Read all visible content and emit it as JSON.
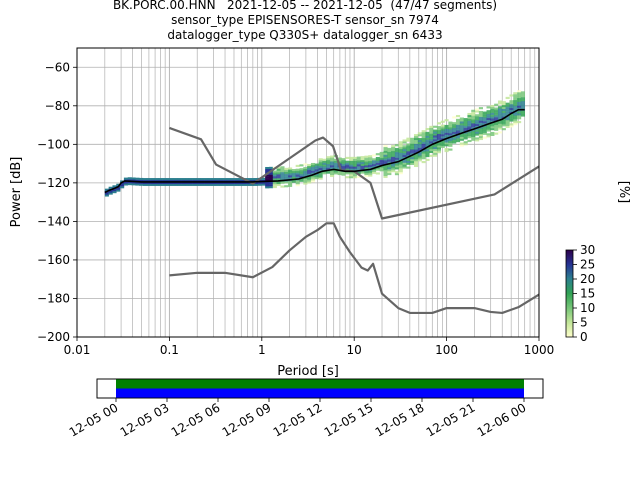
{
  "titles": {
    "line1": "BK.PORC.00.HNN   2021-12-05 -- 2021-12-05  (47/47 segments)",
    "line2": "sensor_type EPISENSORES-T sensor_sn 7974",
    "line3": "datalogger_type Q330S+ datalogger_sn 6433"
  },
  "chart_data": [
    {
      "type": "line",
      "title": "",
      "xlabel": "Period [s]",
      "ylabel": "Power [dB]",
      "xscale": "log",
      "xlim": [
        0.01,
        1000
      ],
      "ylim": [
        -200,
        -50
      ],
      "x_ticks": [
        "0.01",
        "0.1",
        "1",
        "10",
        "100",
        "1000"
      ],
      "y_ticks": [
        "−200",
        "−180",
        "−160",
        "−140",
        "−120",
        "−100",
        "−80",
        "−60"
      ],
      "grid": true,
      "colorbar": {
        "label": "[%]",
        "ticks": [
          "0",
          "5",
          "10",
          "15",
          "20",
          "25",
          "30"
        ],
        "range": [
          0,
          30
        ],
        "colors": [
          "#ffffcc",
          "#c2e699",
          "#78c679",
          "#31a354",
          "#2c7f8f",
          "#253494",
          "#2d004b"
        ]
      },
      "series": [
        {
          "role": "mode (black)",
          "color": "#000000",
          "x": [
            0.02,
            0.022,
            0.025,
            0.028,
            0.03,
            0.033,
            0.05,
            0.1,
            0.3,
            0.8,
            1.5,
            2.5,
            3.5,
            4.5,
            6,
            8,
            10,
            15,
            20,
            30,
            50,
            70,
            100,
            150,
            200,
            300,
            400,
            500,
            600,
            700
          ],
          "y": [
            -125,
            -124,
            -123,
            -122,
            -120,
            -119,
            -119.5,
            -119.5,
            -119.5,
            -119.5,
            -119,
            -118,
            -116,
            -114,
            -113,
            -114,
            -114,
            -113,
            -111,
            -109,
            -104,
            -100,
            -97,
            -94,
            -92,
            -89,
            -87,
            -84,
            -82,
            -82
          ]
        },
        {
          "role": "model curve (gray)",
          "color": "#666666",
          "x": [
            0.1,
            0.22,
            0.32,
            0.8,
            3.8,
            4.6,
            5.9,
            7.2,
            10,
            15,
            20,
            330,
            1000
          ],
          "y": [
            -91.5,
            -97.4,
            -110.5,
            -120.4,
            -98,
            -96.5,
            -101,
            -113.5,
            -114,
            -120,
            -138.5,
            -126,
            -111.5
          ]
        },
        {
          "role": "model curve (gray)",
          "color": "#666666",
          "x": [
            0.1,
            0.2,
            0.4,
            0.8,
            1.3,
            2,
            3,
            4,
            5,
            6,
            7,
            9,
            12,
            14,
            16,
            20,
            30,
            40,
            70,
            100,
            200,
            300,
            400,
            600,
            1000
          ],
          "y": [
            -168,
            -166.7,
            -166.7,
            -169,
            -163.7,
            -155,
            -148,
            -144.5,
            -141,
            -141,
            -148,
            -156,
            -164,
            -165.5,
            -162,
            -177.5,
            -185,
            -187.5,
            -187.5,
            -185,
            -185,
            -187,
            -187.5,
            -184.5,
            -178
          ]
        }
      ]
    },
    {
      "type": "timeline",
      "x_ticks": [
        "12-05 00",
        "12-05 03",
        "12-05 06",
        "12-05 09",
        "12-05 12",
        "12-05 15",
        "12-05 18",
        "12-05 21",
        "12-06 00"
      ],
      "bars": [
        {
          "color": "#008000",
          "start_hour": 0,
          "end_hour": 24
        },
        {
          "color": "#0000ff",
          "start_hour": 0,
          "end_hour": 24
        }
      ]
    }
  ]
}
